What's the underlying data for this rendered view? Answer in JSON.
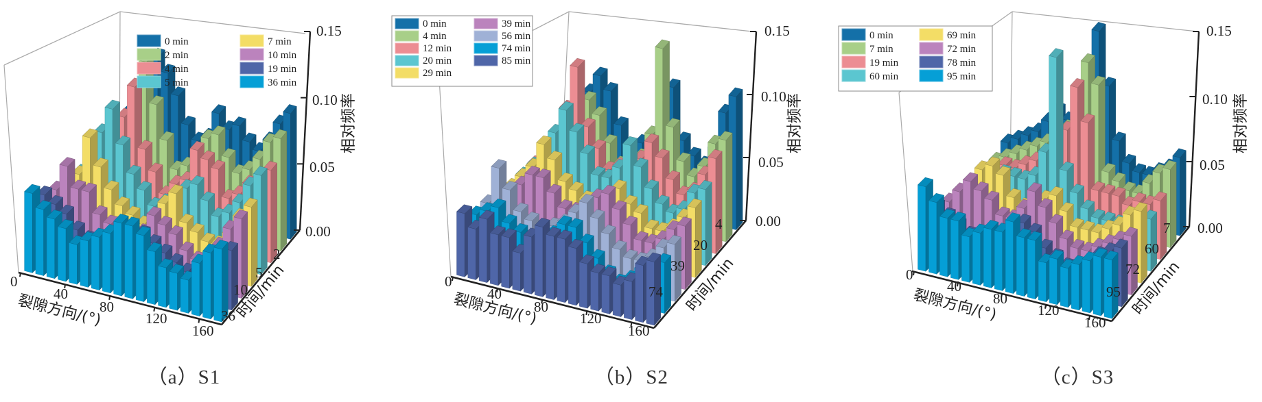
{
  "chart_data": [
    {
      "type": "bar3d",
      "panel_id": "a",
      "caption": "（a）S1",
      "xlabel": "裂隙方向/(°)",
      "ylabel": "时间/min",
      "zlabel": "相对频率",
      "x_ticks": [
        "0",
        "40",
        "80",
        "120",
        "160"
      ],
      "y_ticks": [
        "2",
        "5",
        "10",
        "36"
      ],
      "z_ticks": [
        "0.00",
        "0.05",
        "0.10",
        "0.15"
      ],
      "zlim": [
        0,
        0.15
      ],
      "categories": [
        0,
        10,
        20,
        30,
        40,
        50,
        60,
        70,
        80,
        90,
        100,
        110,
        120,
        130,
        140,
        150,
        160,
        170
      ],
      "legend": "top-right",
      "series": [
        {
          "name": "0 min",
          "color": "#1470a8",
          "values": [
            0.05,
            0.06,
            0.07,
            0.09,
            0.11,
            0.1,
            0.085,
            0.065,
            0.055,
            0.06,
            0.08,
            0.07,
            0.075,
            0.065,
            0.06,
            0.07,
            0.085,
            0.095
          ]
        },
        {
          "name": "2 min",
          "color": "#a8cf88",
          "values": [
            0.045,
            0.055,
            0.065,
            0.085,
            0.115,
            0.085,
            0.06,
            0.04,
            0.045,
            0.05,
            0.07,
            0.075,
            0.06,
            0.05,
            0.055,
            0.065,
            0.08,
            0.085
          ]
        },
        {
          "name": "4 min",
          "color": "#ec8d93",
          "values": [
            0.04,
            0.05,
            0.06,
            0.08,
            0.105,
            0.06,
            0.045,
            0.03,
            0.04,
            0.045,
            0.07,
            0.065,
            0.06,
            0.04,
            0.045,
            0.055,
            0.06,
            0.07
          ]
        },
        {
          "name": "5 min",
          "color": "#5bc6d0",
          "values": [
            0.04,
            0.05,
            0.075,
            0.095,
            0.07,
            0.05,
            0.04,
            0.03,
            0.035,
            0.04,
            0.05,
            0.055,
            0.045,
            0.035,
            0.04,
            0.05,
            0.065,
            0.075
          ]
        },
        {
          "name": "7 min",
          "color": "#f3dd66",
          "values": [
            0.04,
            0.05,
            0.08,
            0.06,
            0.045,
            0.035,
            0.03,
            0.025,
            0.03,
            0.045,
            0.055,
            0.035,
            0.03,
            0.025,
            0.025,
            0.035,
            0.05,
            0.06
          ]
        },
        {
          "name": "10 min",
          "color": "#bb83bd",
          "values": [
            0.045,
            0.065,
            0.05,
            0.05,
            0.035,
            0.03,
            0.025,
            0.025,
            0.03,
            0.045,
            0.04,
            0.035,
            0.025,
            0.02,
            0.02,
            0.035,
            0.05,
            0.06
          ]
        },
        {
          "name": "19 min",
          "color": "#4f66a8",
          "values": [
            0.05,
            0.045,
            0.04,
            0.03,
            0.025,
            0.02,
            0.02,
            0.025,
            0.035,
            0.04,
            0.035,
            0.03,
            0.025,
            0.02,
            0.015,
            0.03,
            0.04,
            0.045
          ]
        },
        {
          "name": "36 min",
          "color": "#059fd6",
          "values": [
            0.06,
            0.05,
            0.045,
            0.04,
            0.03,
            0.035,
            0.04,
            0.045,
            0.055,
            0.055,
            0.05,
            0.04,
            0.03,
            0.028,
            0.025,
            0.04,
            0.05,
            0.055
          ]
        }
      ]
    },
    {
      "type": "bar3d",
      "panel_id": "b",
      "caption": "（b）S2",
      "xlabel": "裂隙方向/(°)",
      "ylabel": "时间/min",
      "zlabel": "相对频率",
      "x_ticks": [
        "0",
        "40",
        "80",
        "120",
        "160"
      ],
      "y_ticks": [
        "4",
        "20",
        "39",
        "74"
      ],
      "z_ticks": [
        "0.00",
        "0.05",
        "0.10",
        "0.15"
      ],
      "zlim": [
        0,
        0.15
      ],
      "categories": [
        0,
        10,
        20,
        30,
        40,
        50,
        60,
        70,
        80,
        90,
        100,
        110,
        120,
        130,
        140,
        150,
        160,
        170
      ],
      "legend": "top-left",
      "series": [
        {
          "name": "0 min",
          "color": "#1470a8",
          "values": [
            0.04,
            0.05,
            0.06,
            0.08,
            0.095,
            0.085,
            0.06,
            0.045,
            0.05,
            0.055,
            0.08,
            0.1,
            0.06,
            0.05,
            0.045,
            0.06,
            0.09,
            0.105
          ]
        },
        {
          "name": "4 min",
          "color": "#a8cf88",
          "values": [
            0.035,
            0.045,
            0.055,
            0.075,
            0.085,
            0.075,
            0.055,
            0.04,
            0.045,
            0.05,
            0.07,
            0.14,
            0.08,
            0.055,
            0.045,
            0.055,
            0.075,
            0.08
          ]
        },
        {
          "name": "12 min",
          "color": "#ec8d93",
          "values": [
            0.035,
            0.045,
            0.06,
            0.085,
            0.12,
            0.075,
            0.06,
            0.045,
            0.05,
            0.05,
            0.06,
            0.075,
            0.065,
            0.05,
            0.04,
            0.045,
            0.06,
            0.075
          ]
        },
        {
          "name": "20 min",
          "color": "#5bc6d0",
          "values": [
            0.035,
            0.045,
            0.055,
            0.075,
            0.095,
            0.08,
            0.065,
            0.05,
            0.05,
            0.06,
            0.08,
            0.065,
            0.05,
            0.04,
            0.035,
            0.04,
            0.055,
            0.06
          ]
        },
        {
          "name": "29 min",
          "color": "#f3dd66",
          "values": [
            0.035,
            0.045,
            0.055,
            0.075,
            0.065,
            0.05,
            0.045,
            0.04,
            0.04,
            0.045,
            0.055,
            0.045,
            0.04,
            0.03,
            0.03,
            0.035,
            0.045,
            0.055
          ]
        },
        {
          "name": "39 min",
          "color": "#bb83bd",
          "values": [
            0.035,
            0.04,
            0.05,
            0.06,
            0.06,
            0.05,
            0.04,
            0.04,
            0.045,
            0.055,
            0.06,
            0.05,
            0.04,
            0.03,
            0.03,
            0.035,
            0.045,
            0.05
          ]
        },
        {
          "name": "56 min",
          "color": "#9fb1d6",
          "values": [
            0.04,
            0.07,
            0.055,
            0.04,
            0.035,
            0.03,
            0.035,
            0.04,
            0.05,
            0.06,
            0.05,
            0.04,
            0.03,
            0.025,
            0.025,
            0.03,
            0.04,
            0.045
          ]
        },
        {
          "name": "74 min",
          "color": "#059fd6",
          "values": [
            0.04,
            0.045,
            0.05,
            0.04,
            0.035,
            0.03,
            0.03,
            0.04,
            0.05,
            0.05,
            0.04,
            0.03,
            0.02,
            0.015,
            0.02,
            0.03,
            0.035,
            0.04
          ]
        },
        {
          "name": "85 min",
          "color": "#4f66a8",
          "values": [
            0.05,
            0.04,
            0.05,
            0.04,
            0.04,
            0.03,
            0.045,
            0.055,
            0.05,
            0.05,
            0.045,
            0.035,
            0.03,
            0.03,
            0.025,
            0.03,
            0.045,
            0.05
          ]
        }
      ]
    },
    {
      "type": "bar3d",
      "panel_id": "c",
      "caption": "（c）S3",
      "xlabel": "裂隙方向/(°)",
      "ylabel": "时间/min",
      "zlabel": "相对频率",
      "x_ticks": [
        "0",
        "40",
        "80",
        "120",
        "160"
      ],
      "y_ticks": [
        "7",
        "60",
        "72",
        "95"
      ],
      "z_ticks": [
        "0.00",
        "0.05",
        "0.10",
        "0.15"
      ],
      "zlim": [
        0,
        0.15
      ],
      "categories": [
        0,
        10,
        20,
        30,
        40,
        50,
        60,
        70,
        80,
        90,
        100,
        110,
        120,
        130,
        140,
        150,
        160,
        170
      ],
      "legend": "top-left",
      "series": [
        {
          "name": "0 min",
          "color": "#1470a8",
          "values": [
            0.035,
            0.04,
            0.045,
            0.05,
            0.06,
            0.07,
            0.065,
            0.075,
            0.085,
            0.14,
            0.1,
            0.06,
            0.045,
            0.04,
            0.04,
            0.045,
            0.05,
            0.06
          ]
        },
        {
          "name": "7 min",
          "color": "#a8cf88",
          "values": [
            0.03,
            0.035,
            0.04,
            0.045,
            0.05,
            0.055,
            0.06,
            0.07,
            0.08,
            0.125,
            0.11,
            0.045,
            0.04,
            0.035,
            0.035,
            0.045,
            0.055,
            0.06
          ]
        },
        {
          "name": "19 min",
          "color": "#ec8d93",
          "values": [
            0.03,
            0.035,
            0.04,
            0.04,
            0.045,
            0.05,
            0.055,
            0.065,
            0.08,
            0.115,
            0.09,
            0.04,
            0.04,
            0.04,
            0.035,
            0.04,
            0.04,
            0.045
          ]
        },
        {
          "name": "60 min",
          "color": "#5bc6d0",
          "values": [
            0.03,
            0.03,
            0.035,
            0.045,
            0.045,
            0.045,
            0.05,
            0.07,
            0.145,
            0.06,
            0.045,
            0.035,
            0.03,
            0.03,
            0.03,
            0.03,
            0.035,
            0.04
          ]
        },
        {
          "name": "69 min",
          "color": "#f3dd66",
          "values": [
            0.03,
            0.035,
            0.055,
            0.06,
            0.055,
            0.04,
            0.035,
            0.035,
            0.045,
            0.05,
            0.04,
            0.03,
            0.03,
            0.03,
            0.035,
            0.04,
            0.05,
            0.055
          ]
        },
        {
          "name": "72 min",
          "color": "#bb83bd",
          "values": [
            0.035,
            0.045,
            0.055,
            0.05,
            0.045,
            0.035,
            0.035,
            0.045,
            0.06,
            0.05,
            0.04,
            0.03,
            0.025,
            0.025,
            0.03,
            0.035,
            0.04,
            0.045
          ]
        },
        {
          "name": "78 min",
          "color": "#4f66a8",
          "values": [
            0.04,
            0.035,
            0.03,
            0.025,
            0.025,
            0.025,
            0.03,
            0.035,
            0.045,
            0.04,
            0.03,
            0.025,
            0.02,
            0.02,
            0.025,
            0.035,
            0.04,
            0.045
          ]
        },
        {
          "name": "95 min",
          "color": "#059fd6",
          "values": [
            0.065,
            0.055,
            0.045,
            0.045,
            0.035,
            0.04,
            0.045,
            0.045,
            0.055,
            0.045,
            0.045,
            0.03,
            0.035,
            0.03,
            0.035,
            0.04,
            0.045,
            0.045
          ]
        }
      ]
    }
  ]
}
